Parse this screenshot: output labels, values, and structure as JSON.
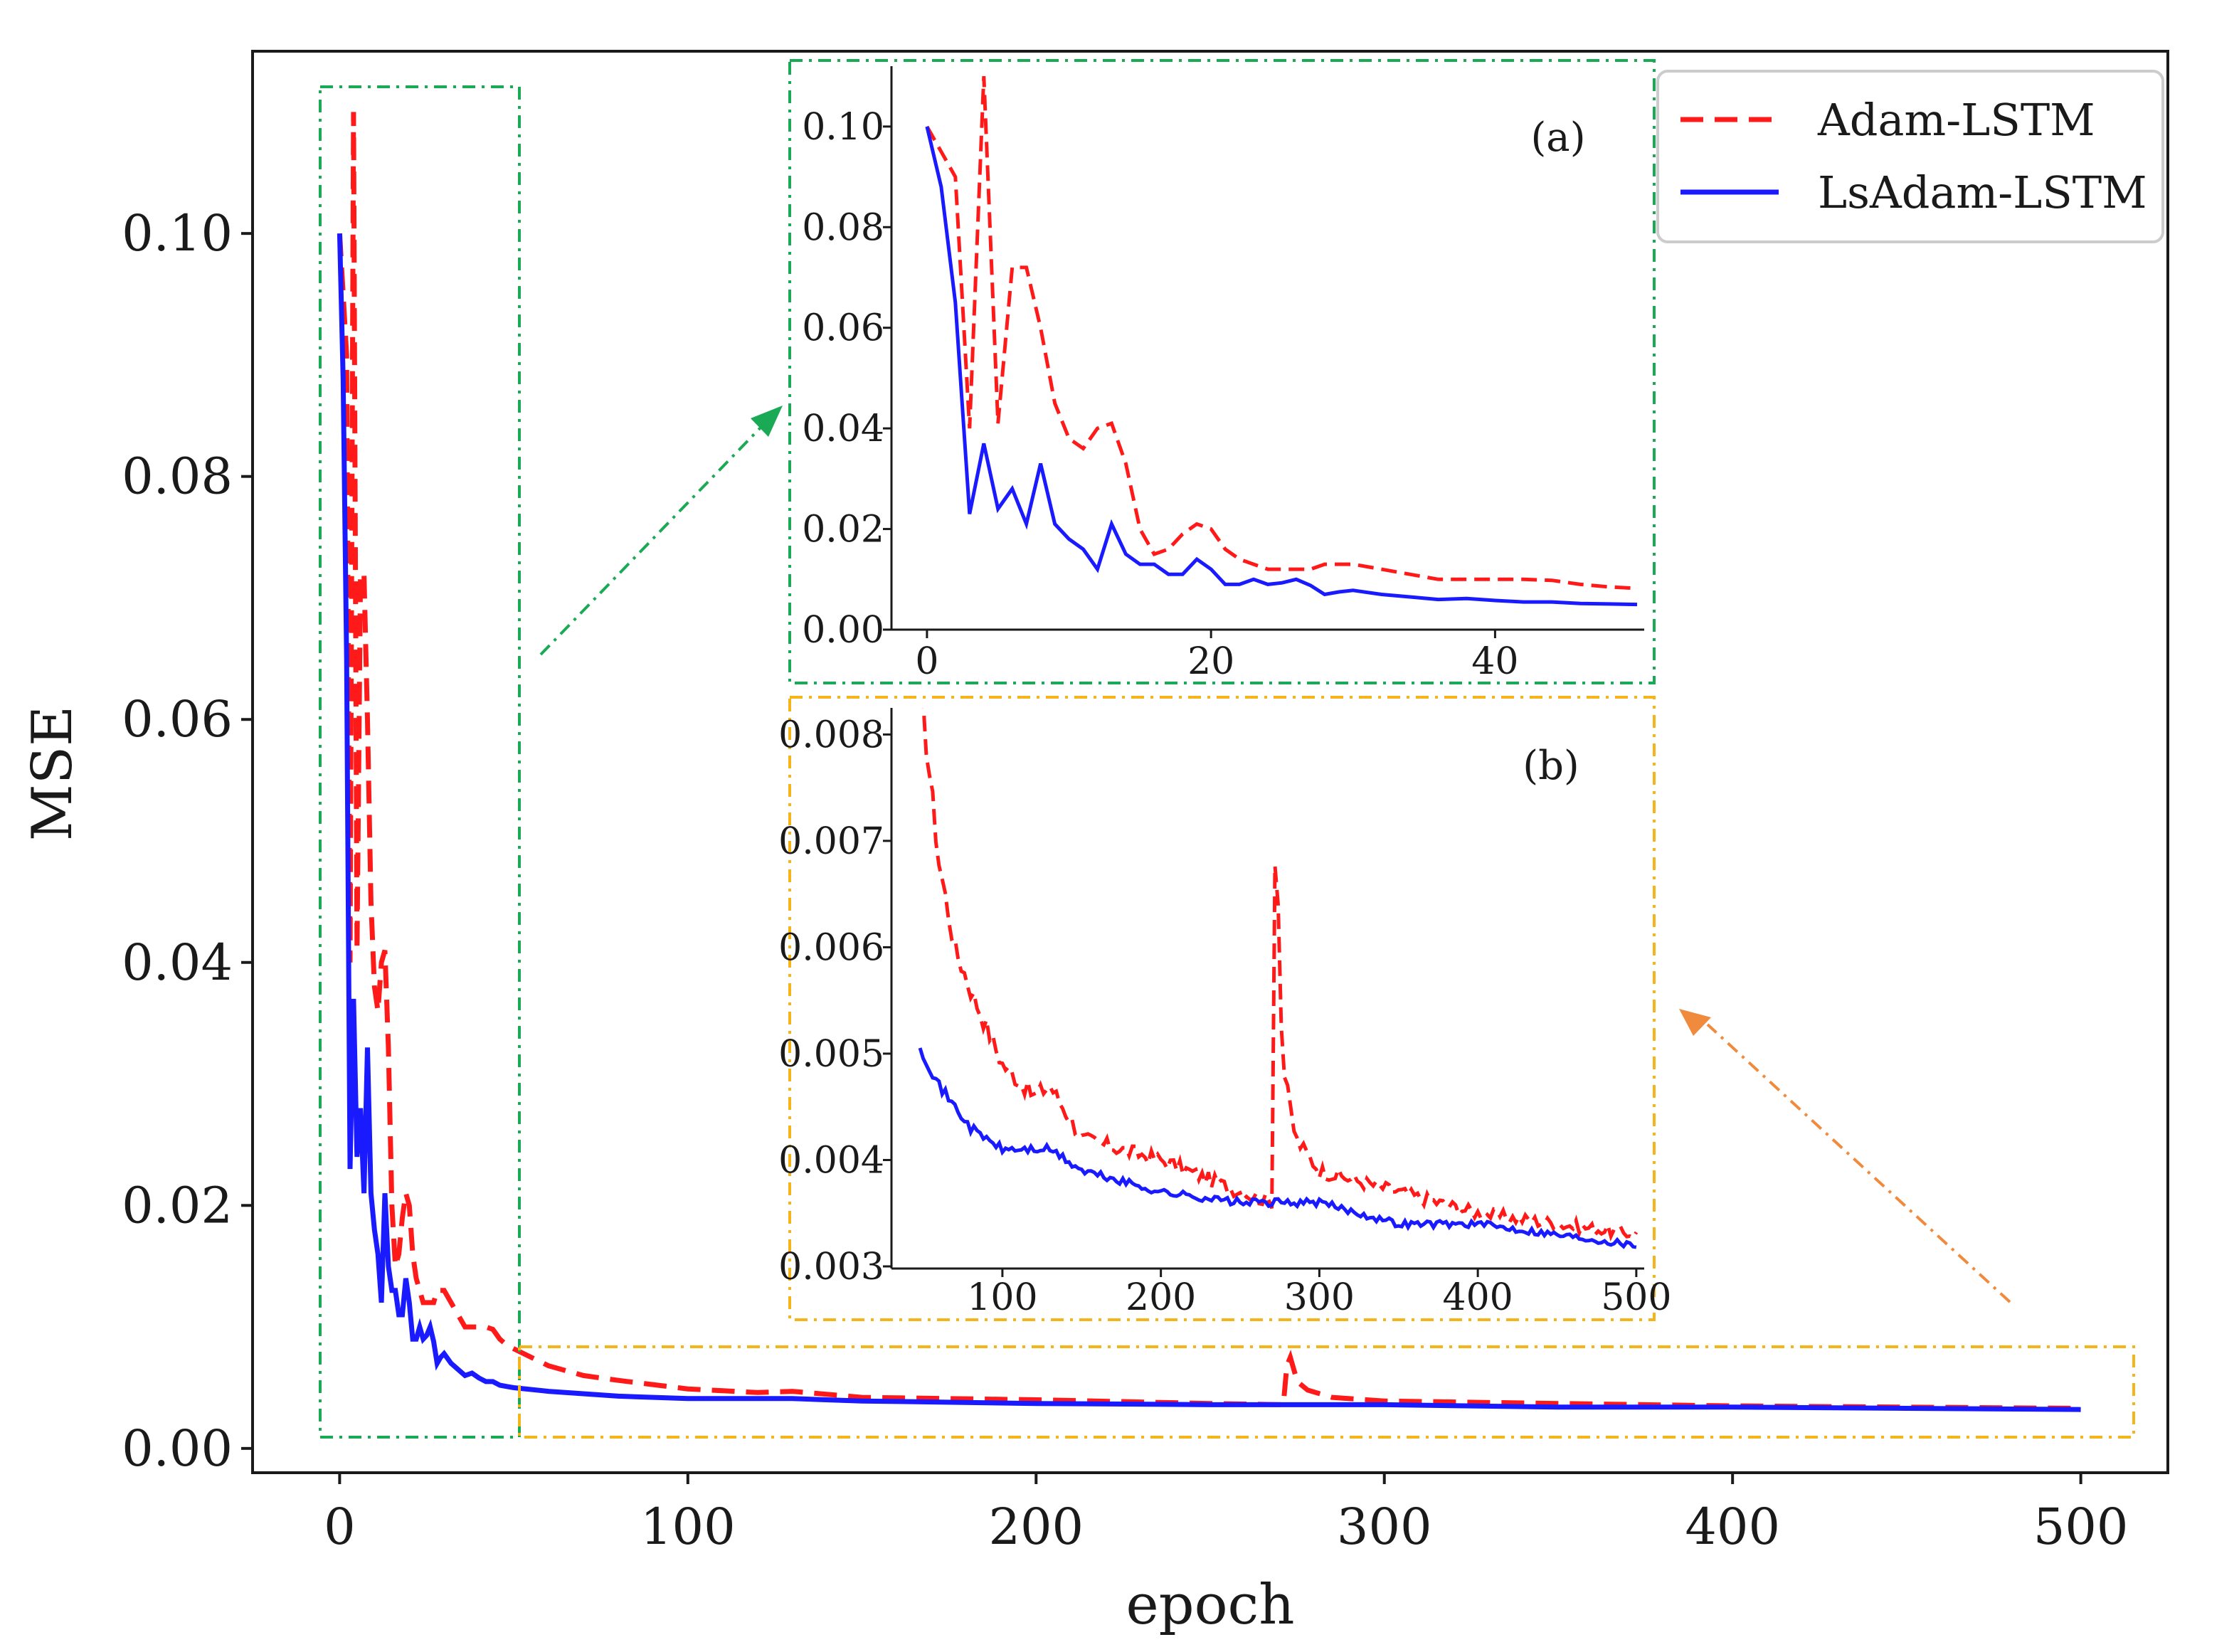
{
  "chart_data": [
    {
      "type": "line",
      "panel": "main",
      "title": "",
      "xlabel": "epoch",
      "ylabel": "MSE",
      "xlim": [
        -25,
        525
      ],
      "ylim": [
        -0.002,
        0.115
      ],
      "xticks": [
        0,
        100,
        200,
        300,
        400,
        500
      ],
      "xtick_labels": [
        "0",
        "100",
        "200",
        "300",
        "400",
        "500"
      ],
      "yticks": [
        0.0,
        0.02,
        0.04,
        0.06,
        0.08,
        0.1
      ],
      "ytick_labels": [
        "0.00",
        "0.02",
        "0.04",
        "0.06",
        "0.08",
        "0.10"
      ],
      "legend_position": "top-right",
      "grid": false,
      "series": [
        {
          "name": "Adam-LSTM",
          "color": "#ff1a1a",
          "style": "dashed",
          "x": [
            0,
            1,
            2,
            3,
            4,
            5,
            6,
            7,
            8,
            9,
            10,
            11,
            12,
            13,
            14,
            15,
            16,
            17,
            18,
            19,
            20,
            21,
            22,
            23,
            24,
            25,
            26,
            27,
            28,
            29,
            30,
            32,
            34,
            36,
            38,
            40,
            42,
            44,
            46,
            48,
            50,
            60,
            70,
            80,
            100,
            120,
            130,
            150,
            200,
            250,
            271,
            272,
            273,
            275,
            278,
            285,
            300,
            350,
            400,
            450,
            500
          ],
          "values": [
            0.1,
            0.095,
            0.09,
            0.04,
            0.11,
            0.041,
            0.072,
            0.072,
            0.06,
            0.045,
            0.038,
            0.036,
            0.04,
            0.041,
            0.033,
            0.02,
            0.015,
            0.016,
            0.019,
            0.021,
            0.02,
            0.016,
            0.014,
            0.013,
            0.012,
            0.012,
            0.012,
            0.012,
            0.013,
            0.013,
            0.013,
            0.012,
            0.011,
            0.01,
            0.01,
            0.01,
            0.01,
            0.0098,
            0.009,
            0.0085,
            0.0082,
            0.0068,
            0.006,
            0.0056,
            0.0049,
            0.0046,
            0.0047,
            0.0042,
            0.004,
            0.0037,
            0.0036,
            0.0068,
            0.0075,
            0.0055,
            0.0048,
            0.0042,
            0.0039,
            0.0037,
            0.0035,
            0.0034,
            0.0033
          ]
        },
        {
          "name": "LsAdam-LSTM",
          "color": "#1a1aff",
          "style": "solid",
          "x": [
            0,
            1,
            2,
            3,
            4,
            5,
            6,
            7,
            8,
            9,
            10,
            11,
            12,
            13,
            14,
            15,
            16,
            17,
            18,
            19,
            20,
            21,
            22,
            23,
            24,
            25,
            26,
            27,
            28,
            29,
            30,
            32,
            34,
            36,
            38,
            40,
            42,
            44,
            46,
            48,
            50,
            60,
            80,
            100,
            130,
            150,
            200,
            250,
            300,
            350,
            400,
            450,
            500
          ],
          "values": [
            0.1,
            0.088,
            0.065,
            0.023,
            0.037,
            0.024,
            0.028,
            0.021,
            0.033,
            0.021,
            0.018,
            0.016,
            0.012,
            0.021,
            0.015,
            0.013,
            0.013,
            0.011,
            0.011,
            0.014,
            0.012,
            0.009,
            0.009,
            0.01,
            0.009,
            0.0093,
            0.01,
            0.0088,
            0.007,
            0.0075,
            0.0078,
            0.007,
            0.0065,
            0.006,
            0.0062,
            0.0058,
            0.0055,
            0.0055,
            0.0052,
            0.0051,
            0.005,
            0.0047,
            0.0043,
            0.0041,
            0.0041,
            0.0039,
            0.0037,
            0.0036,
            0.0036,
            0.0034,
            0.0034,
            0.0033,
            0.0032
          ]
        }
      ]
    },
    {
      "type": "line",
      "panel": "inset-a",
      "title": "(a)",
      "xlim": [
        -2.5,
        50.5
      ],
      "ylim": [
        0.0,
        0.112
      ],
      "xticks": [
        0,
        20,
        40
      ],
      "xtick_labels": [
        "0",
        "20",
        "40"
      ],
      "yticks": [
        0.0,
        0.02,
        0.04,
        0.06,
        0.08,
        0.1
      ],
      "ytick_labels": [
        "0.00",
        "0.02",
        "0.04",
        "0.06",
        "0.08",
        "0.10"
      ],
      "series_ref": [
        "Adam-LSTM",
        "LsAdam-LSTM"
      ]
    },
    {
      "type": "line",
      "panel": "inset-b",
      "title": "(b)",
      "xlim": [
        30,
        505
      ],
      "ylim": [
        0.00298,
        0.00825
      ],
      "xticks": [
        100,
        200,
        300,
        400,
        500
      ],
      "xtick_labels": [
        "100",
        "200",
        "300",
        "400",
        "500"
      ],
      "yticks": [
        0.003,
        0.004,
        0.005,
        0.006,
        0.007,
        0.008
      ],
      "ytick_labels": [
        "0.003",
        "0.004",
        "0.005",
        "0.006",
        "0.007",
        "0.008"
      ],
      "series_ref": [
        "Adam-LSTM",
        "LsAdam-LSTM"
      ]
    }
  ],
  "colors": {
    "adam": "#ff1a1a",
    "lsadam": "#1a1aff",
    "zoom_a": "#1aaa55",
    "zoom_b": "#f5b41a",
    "arrow_b": "#f08a3c"
  }
}
